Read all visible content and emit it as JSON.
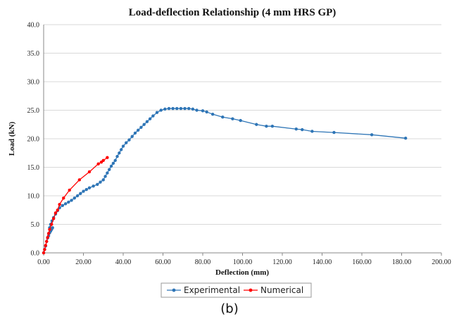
{
  "chart_data": {
    "type": "line",
    "title": "Load-deflection Relationship (4 mm HRS GP)",
    "xlabel": "Deflection (mm)",
    "ylabel": "Load (kN)",
    "xlim": [
      0,
      200
    ],
    "ylim": [
      0,
      40
    ],
    "x_ticks": [
      "0.00",
      "20.00",
      "40.00",
      "60.00",
      "80.00",
      "100.00",
      "120.00",
      "140.00",
      "160.00",
      "180.00",
      "200.00"
    ],
    "y_ticks": [
      "0.0",
      "5.0",
      "10.0",
      "15.0",
      "20.0",
      "25.0",
      "30.0",
      "35.0",
      "40.0"
    ],
    "grid": "horizontal",
    "legend_placement": "bottom",
    "series": [
      {
        "name": "Experimental",
        "color": "#2e75b6",
        "points": [
          [
            0,
            0
          ],
          [
            0.5,
            0.6
          ],
          [
            1.0,
            1.2
          ],
          [
            1.5,
            2.0
          ],
          [
            2.0,
            2.6
          ],
          [
            2.5,
            3.0
          ],
          [
            3.0,
            3.5
          ],
          [
            3.5,
            3.8
          ],
          [
            4.0,
            4.1
          ],
          [
            4.5,
            4.4
          ],
          [
            3.0,
            4.4
          ],
          [
            3.5,
            5.0
          ],
          [
            4.2,
            5.6
          ],
          [
            5.0,
            6.2
          ],
          [
            6.0,
            6.8
          ],
          [
            7.0,
            7.4
          ],
          [
            8.0,
            7.9
          ],
          [
            9.5,
            8.3
          ],
          [
            11.0,
            8.6
          ],
          [
            12.5,
            8.9
          ],
          [
            14.0,
            9.2
          ],
          [
            15.5,
            9.6
          ],
          [
            17.0,
            10.0
          ],
          [
            18.5,
            10.4
          ],
          [
            20.0,
            10.8
          ],
          [
            21.5,
            11.1
          ],
          [
            23.0,
            11.4
          ],
          [
            25.0,
            11.7
          ],
          [
            27.0,
            12.0
          ],
          [
            28.5,
            12.4
          ],
          [
            30.0,
            12.8
          ],
          [
            31.0,
            13.4
          ],
          [
            32.0,
            14.0
          ],
          [
            33.0,
            14.6
          ],
          [
            34.0,
            15.2
          ],
          [
            35.0,
            15.7
          ],
          [
            36.0,
            16.2
          ],
          [
            37.0,
            16.9
          ],
          [
            38.0,
            17.5
          ],
          [
            39.0,
            18.1
          ],
          [
            40.0,
            18.7
          ],
          [
            41.5,
            19.3
          ],
          [
            43.0,
            19.8
          ],
          [
            44.5,
            20.4
          ],
          [
            46.0,
            21.0
          ],
          [
            47.5,
            21.5
          ],
          [
            49.0,
            22.0
          ],
          [
            50.5,
            22.5
          ],
          [
            52.0,
            23.0
          ],
          [
            53.5,
            23.5
          ],
          [
            55.0,
            24.0
          ],
          [
            57.0,
            24.6
          ],
          [
            59.0,
            25.0
          ],
          [
            61.0,
            25.2
          ],
          [
            63.0,
            25.3
          ],
          [
            65.0,
            25.3
          ],
          [
            67.0,
            25.3
          ],
          [
            69.0,
            25.3
          ],
          [
            71.0,
            25.3
          ],
          [
            73.0,
            25.3
          ],
          [
            75.0,
            25.2
          ],
          [
            77.0,
            25.0
          ],
          [
            80.0,
            24.9
          ],
          [
            82.0,
            24.7
          ],
          [
            85.0,
            24.3
          ],
          [
            90.0,
            23.8
          ],
          [
            95.0,
            23.5
          ],
          [
            99.0,
            23.2
          ],
          [
            107.0,
            22.5
          ],
          [
            112.0,
            22.2
          ],
          [
            115.0,
            22.2
          ],
          [
            127.0,
            21.7
          ],
          [
            130.0,
            21.6
          ],
          [
            135.0,
            21.3
          ],
          [
            146.0,
            21.1
          ],
          [
            165.0,
            20.7
          ],
          [
            182.0,
            20.1
          ]
        ]
      },
      {
        "name": "Numerical",
        "color": "#ff0000",
        "points": [
          [
            0,
            0
          ],
          [
            0.5,
            0.6
          ],
          [
            1.0,
            1.3
          ],
          [
            1.5,
            2.0
          ],
          [
            2.0,
            2.7
          ],
          [
            2.5,
            3.4
          ],
          [
            3.0,
            4.1
          ],
          [
            4.0,
            5.0
          ],
          [
            5.0,
            6.0
          ],
          [
            6.0,
            7.0
          ],
          [
            7.0,
            7.5
          ],
          [
            8.0,
            8.5
          ],
          [
            10.0,
            9.6
          ],
          [
            13.0,
            11.0
          ],
          [
            18.0,
            12.8
          ],
          [
            23.0,
            14.2
          ],
          [
            27.5,
            15.6
          ],
          [
            29.0,
            15.9
          ],
          [
            30.0,
            16.2
          ],
          [
            32.0,
            16.7
          ]
        ]
      }
    ]
  },
  "caption": "(b)"
}
